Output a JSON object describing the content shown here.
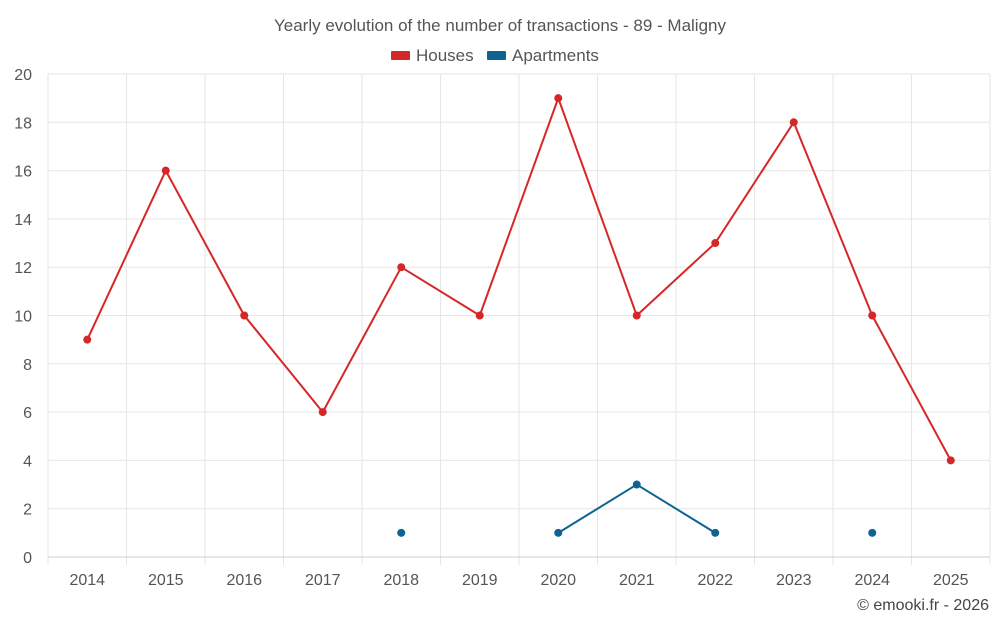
{
  "chart_data": {
    "type": "line",
    "title": "Yearly evolution of the number of transactions - 89 - Maligny",
    "categories": [
      "2014",
      "2015",
      "2016",
      "2017",
      "2018",
      "2019",
      "2020",
      "2021",
      "2022",
      "2023",
      "2024",
      "2025"
    ],
    "ylim": [
      0,
      20
    ],
    "yticks": [
      0,
      2,
      4,
      6,
      8,
      10,
      12,
      14,
      16,
      18,
      20
    ],
    "grid": true,
    "legend_position": "top-center",
    "series": [
      {
        "name": "Houses",
        "color": "#d62728",
        "values": [
          9,
          16,
          10,
          6,
          12,
          10,
          19,
          10,
          13,
          18,
          10,
          4
        ]
      },
      {
        "name": "Apartments",
        "color": "#0e6393",
        "values": [
          null,
          null,
          null,
          null,
          1,
          null,
          1,
          3,
          1,
          null,
          1,
          null
        ]
      }
    ]
  },
  "credit": "© emooki.fr - 2026"
}
